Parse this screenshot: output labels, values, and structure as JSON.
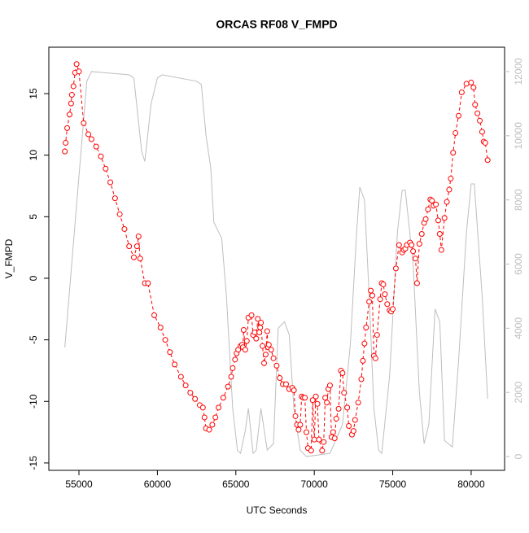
{
  "chart_data": {
    "type": "line",
    "title": "ORCAS RF08 V_FMPD",
    "xlabel": "UTC Seconds",
    "ylabel": "V_FMPD",
    "xlim": [
      53080,
      82130
    ],
    "xticks": [
      55000,
      60000,
      65000,
      70000,
      75000,
      80000
    ],
    "ylim": [
      -15.6,
      18.77
    ],
    "yticks": [
      -15,
      -10,
      -5,
      0,
      5,
      10,
      15
    ],
    "y2lim": [
      -430,
      12760
    ],
    "y2ticks": [
      0,
      2000,
      4000,
      6000,
      8000,
      10000,
      12000
    ],
    "series": [
      {
        "color": "#ff0000",
        "markers": true,
        "x": [
          54100,
          54150,
          54250,
          54400,
          54500,
          54550,
          54650,
          54750,
          54850,
          55000,
          55300,
          55600,
          55800,
          56100,
          56400,
          56700,
          57000,
          57300,
          57600,
          57900,
          58200,
          58500,
          58700,
          58800,
          58900,
          59200,
          59400,
          59800,
          60200,
          60500,
          60800,
          61100,
          61500,
          61800,
          62100,
          62400,
          62700,
          62900,
          63000,
          63100,
          63300,
          63500,
          63700,
          63900,
          64200,
          64500,
          64700,
          64800,
          64950,
          65050,
          65150,
          65300,
          65400,
          65450,
          65500,
          65600,
          65700,
          65800,
          66000,
          66100,
          66200,
          66300,
          66400,
          66500,
          66550,
          66600,
          66700,
          66800,
          66900,
          67000,
          67050,
          67100,
          67250,
          67400,
          67600,
          67800,
          68000,
          68200,
          68400,
          68600,
          68700,
          68800,
          68900,
          69000,
          69100,
          69200,
          69300,
          69400,
          69500,
          69600,
          69800,
          69900,
          70000,
          70100,
          70200,
          70300,
          70500,
          70600,
          70700,
          70800,
          70900,
          71000,
          71100,
          71200,
          71300,
          71400,
          71550,
          71700,
          71800,
          71900,
          72100,
          72200,
          72400,
          72500,
          72600,
          72800,
          73000,
          73100,
          73200,
          73300,
          73500,
          73600,
          73700,
          73800,
          73900,
          74000,
          74200,
          74300,
          74400,
          74500,
          74650,
          74800,
          74900,
          75000,
          75200,
          75400,
          75600,
          75700,
          75800,
          75900,
          76100,
          76200,
          76300,
          76450,
          76550,
          76700,
          76850,
          77000,
          77100,
          77250,
          77400,
          77500,
          77600,
          77750,
          77900,
          78000,
          78100,
          78300,
          78450,
          78600,
          78700,
          78850,
          79000,
          79200,
          79400,
          79700,
          80000,
          80150,
          80250,
          80400,
          80550,
          80700,
          80800,
          80900,
          81050
        ],
        "values": [
          10.3,
          11,
          12.2,
          13.3,
          14.2,
          14.9,
          15.6,
          16.7,
          17.4,
          16.8,
          12.6,
          11.7,
          11.3,
          10.7,
          9.9,
          8.9,
          7.8,
          6.5,
          5.2,
          4,
          2.6,
          1.7,
          2.6,
          3.4,
          1.6,
          -0.4,
          -0.4,
          -3,
          -4,
          -5,
          -6,
          -7,
          -8,
          -8.7,
          -9.3,
          -9.8,
          -10.3,
          -10.5,
          -11.3,
          -12.2,
          -12.3,
          -11.9,
          -11.3,
          -10.5,
          -9.7,
          -8.8,
          -8,
          -7.3,
          -6.6,
          -6.1,
          -5.8,
          -5.5,
          -5.4,
          -5.6,
          -4.2,
          -5.8,
          -5.1,
          -3.2,
          -3,
          -4.6,
          -4.4,
          -4.9,
          -3.3,
          -4.4,
          -4,
          -3.6,
          -5.5,
          -6.9,
          -6.2,
          -4.3,
          -5.6,
          -5.4,
          -5.8,
          -6.5,
          -7.1,
          -8.1,
          -8.6,
          -8.6,
          -9,
          -8.9,
          -9.1,
          -11.2,
          -11.9,
          -12.3,
          -11.9,
          -9.6,
          -9.7,
          -9.7,
          -12.5,
          -13.8,
          -14,
          -9.9,
          -13.1,
          -9.6,
          -10.2,
          -13.1,
          -14,
          -13.3,
          -9.7,
          -10.1,
          -9,
          -8.7,
          -12.9,
          -12.5,
          -13,
          -11.4,
          -10.6,
          -7.5,
          -7.7,
          -9.3,
          -10.5,
          -12,
          -12.7,
          -12.4,
          -11.5,
          -10.1,
          -8.2,
          -6.7,
          -5.3,
          -4,
          -1.9,
          -1,
          -1.4,
          -6.3,
          -6.5,
          -4.6,
          -1.7,
          -0.4,
          -0.5,
          -1.3,
          -2.1,
          -2.6,
          -2.7,
          -2.5,
          0.8,
          2.7,
          2.1,
          2.3,
          2.4,
          2.7,
          2.9,
          2.7,
          2.2,
          1.6,
          -0.4,
          2.8,
          3.6,
          4.5,
          4.8,
          5.6,
          6.4,
          6.3,
          5.9,
          6,
          4.7,
          3.6,
          2.3,
          4.9,
          6.2,
          7.2,
          8.1,
          10.2,
          11.8,
          13.2,
          15.1,
          15.8,
          15.9,
          15.5,
          14.1,
          13.4,
          12.8,
          11.9,
          11.1,
          11,
          9.6
        ]
      },
      {
        "color": "#bebebe",
        "axis": "y2",
        "markers": false,
        "x": [
          54100,
          55500,
          55800,
          58200,
          58500,
          59000,
          59200,
          59600,
          60000,
          60300,
          62500,
          62800,
          63100,
          63400,
          63600,
          63900,
          64100,
          64400,
          64800,
          65100,
          65300,
          65600,
          65800,
          66100,
          66300,
          66600,
          67000,
          67400,
          67700,
          68100,
          68400,
          68700,
          69100,
          69500,
          71000,
          71800,
          72300,
          72700,
          72900,
          73200,
          73500,
          73800,
          74100,
          74300,
          74800,
          75300,
          75600,
          75800,
          76300,
          76700,
          77000,
          77300,
          77700,
          78000,
          78300,
          78800,
          79200,
          79700,
          80000,
          80200,
          80700,
          81050
        ],
        "values": [
          3400,
          11700,
          12000,
          11900,
          11800,
          9500,
          9200,
          11000,
          11800,
          11900,
          11700,
          11600,
          10000,
          9000,
          7300,
          7000,
          6800,
          5000,
          1500,
          200,
          100,
          800,
          1500,
          100,
          200,
          1500,
          200,
          400,
          4000,
          4200,
          3800,
          1500,
          200,
          0,
          100,
          1000,
          3500,
          7000,
          8400,
          8000,
          5000,
          1500,
          200,
          100,
          2500,
          7000,
          8300,
          8300,
          6000,
          2000,
          400,
          1000,
          4600,
          4200,
          500,
          300,
          3000,
          7000,
          8500,
          8500,
          5000,
          1800
        ]
      }
    ]
  }
}
